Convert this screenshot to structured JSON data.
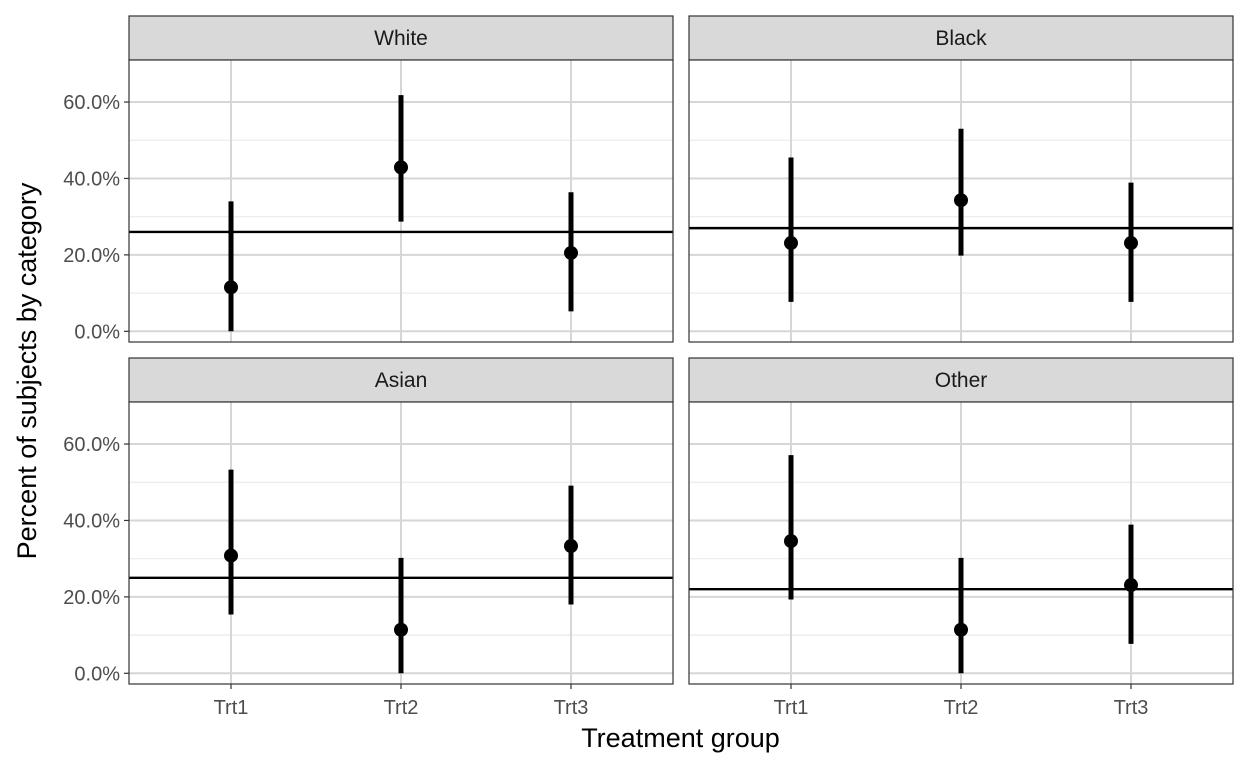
{
  "chart_data": {
    "type": "scatter",
    "subtype": "faceted point-range (dot with vertical interval) plot with horizontal reference line per facet",
    "xlabel": "Treatment group",
    "ylabel": "Percent of subjects by category",
    "categories": [
      "Trt1",
      "Trt2",
      "Trt3"
    ],
    "ylim": [
      -2.8,
      71.0
    ],
    "yticks": [
      0,
      20,
      40,
      60
    ],
    "ytick_labels": [
      "0.0%",
      "20.0%",
      "40.0%",
      "60.0%"
    ],
    "grid": true,
    "legend": "none",
    "colors": {
      "points": "#000000",
      "strip_fill": "#d9d9d9",
      "grid_major": "#d6d6d6",
      "grid_minor": "#ebebeb",
      "panel_border": "#333333"
    },
    "facets": [
      {
        "name": "White",
        "reference_line": 26.0,
        "points": [
          {
            "x": "Trt1",
            "y": 11.5,
            "ymin": 0.0,
            "ymax": 34.0
          },
          {
            "x": "Trt2",
            "y": 42.9,
            "ymin": 28.7,
            "ymax": 61.8
          },
          {
            "x": "Trt3",
            "y": 20.5,
            "ymin": 5.2,
            "ymax": 36.4
          }
        ]
      },
      {
        "name": "Black",
        "reference_line": 27.0,
        "points": [
          {
            "x": "Trt1",
            "y": 23.1,
            "ymin": 7.7,
            "ymax": 45.5
          },
          {
            "x": "Trt2",
            "y": 34.3,
            "ymin": 19.8,
            "ymax": 53.0
          },
          {
            "x": "Trt3",
            "y": 23.1,
            "ymin": 7.7,
            "ymax": 38.9
          }
        ]
      },
      {
        "name": "Asian",
        "reference_line": 25.0,
        "points": [
          {
            "x": "Trt1",
            "y": 30.8,
            "ymin": 15.4,
            "ymax": 53.3
          },
          {
            "x": "Trt2",
            "y": 11.4,
            "ymin": 0.0,
            "ymax": 30.2
          },
          {
            "x": "Trt3",
            "y": 33.3,
            "ymin": 18.0,
            "ymax": 49.1
          }
        ]
      },
      {
        "name": "Other",
        "reference_line": 22.0,
        "points": [
          {
            "x": "Trt1",
            "y": 34.6,
            "ymin": 19.3,
            "ymax": 57.1
          },
          {
            "x": "Trt2",
            "y": 11.4,
            "ymin": 0.0,
            "ymax": 30.2
          },
          {
            "x": "Trt3",
            "y": 23.1,
            "ymin": 7.7,
            "ymax": 38.9
          }
        ]
      }
    ]
  }
}
